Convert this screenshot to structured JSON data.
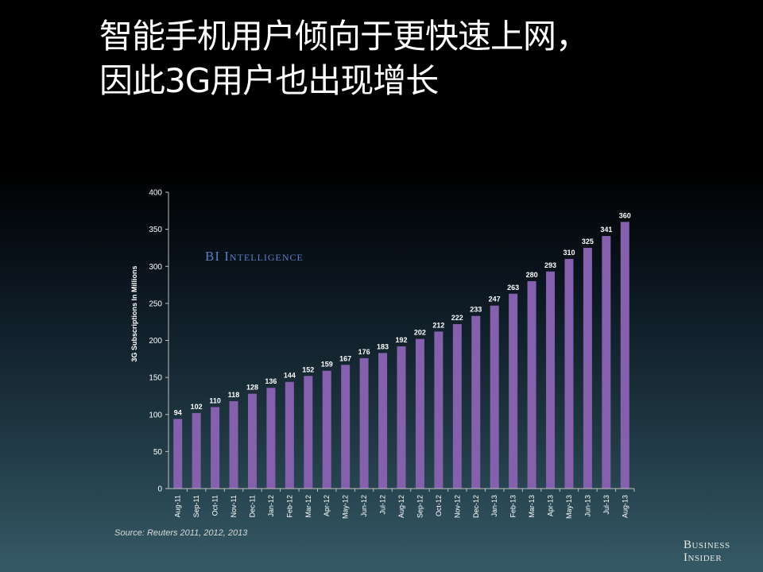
{
  "slide": {
    "title_line1": "智能手机用户倾向于更快速上网，",
    "title_line2": "因此3G用户也出现增长"
  },
  "chart_data": {
    "type": "bar",
    "title": "",
    "xlabel": "",
    "ylabel": "3G Subscriptions In Millions",
    "ylim": [
      0,
      400
    ],
    "yticks": [
      0,
      50,
      100,
      150,
      200,
      250,
      300,
      350,
      400
    ],
    "grid": false,
    "categories": [
      "Aug-11",
      "Sep-11",
      "Oct-11",
      "Nov-11",
      "Dec-11",
      "Jan-12",
      "Feb-12",
      "Mar-12",
      "Apr-12",
      "May-12",
      "Jun-12",
      "Jul-12",
      "Aug-12",
      "Sep-12",
      "Oct-12",
      "Nov-12",
      "Dec-12",
      "Jan-13",
      "Feb-13",
      "Mar-13",
      "Apr-13",
      "May-13",
      "Jun-13",
      "Jul-13",
      "Aug-13"
    ],
    "values": [
      94,
      102,
      110,
      118,
      128,
      136,
      144,
      152,
      159,
      167,
      176,
      183,
      192,
      202,
      212,
      222,
      233,
      247,
      263,
      280,
      293,
      310,
      325,
      341,
      360
    ],
    "bar_color": "#8460ad",
    "data_labels": true
  },
  "brand_label": "BI Intelligence",
  "source": "Source: Reuters 2011, 2012, 2013",
  "logo": {
    "line1": "Business",
    "line2": "Insider"
  },
  "colors": {
    "bar": "#8460ad",
    "axis": "#bfbfbf",
    "text": "#ffffff"
  }
}
